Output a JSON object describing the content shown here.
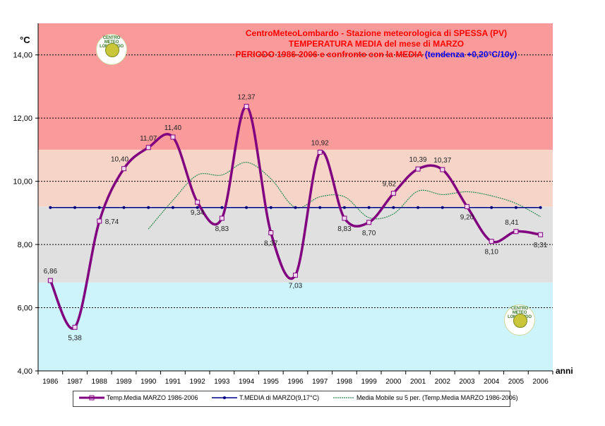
{
  "chart_data": {
    "type": "line",
    "title_lines": [
      {
        "text": "CentroMeteoLombardo - Stazione meteorologica di SPESSA (PV)",
        "color": "#ff0000"
      },
      {
        "text": "TEMPERATURA MEDIA del mese di MARZO",
        "color": "#ff0000"
      },
      {
        "text": "PERIODO 1986-2006 e confronto con la MEDIA",
        "color": "#ff0000",
        "suffix": "(tendenza +0,20°C/10y)",
        "suffix_color": "#0000ff"
      }
    ],
    "ylabel": "°C",
    "xlabel": "anni",
    "ylim": [
      4,
      15
    ],
    "yticks": [
      "4,00",
      "6,00",
      "8,00",
      "10,00",
      "12,00",
      "14,00"
    ],
    "ytick_values": [
      4,
      6,
      8,
      10,
      12,
      14
    ],
    "categories": [
      "1986",
      "1987",
      "1988",
      "1989",
      "1990",
      "1991",
      "1992",
      "1993",
      "1994",
      "1995",
      "1996",
      "1997",
      "1998",
      "1999",
      "2000",
      "2001",
      "2002",
      "2003",
      "2004",
      "2005",
      "2006"
    ],
    "bands": [
      {
        "from": 4.0,
        "to": 6.8,
        "color": "#cdf3fb"
      },
      {
        "from": 6.8,
        "to": 9.2,
        "color": "#e0e0e0"
      },
      {
        "from": 9.2,
        "to": 11.0,
        "color": "#f6d5c8"
      },
      {
        "from": 11.0,
        "to": 15.0,
        "color": "#fb9a9a"
      }
    ],
    "grid_values": [
      6,
      8,
      10,
      12,
      14
    ],
    "series": [
      {
        "name": "Temp.Media MARZO 1986-2006",
        "color": "#800080",
        "values": [
          6.86,
          5.38,
          8.74,
          10.4,
          11.07,
          11.4,
          9.34,
          8.83,
          12.37,
          8.37,
          7.03,
          10.92,
          8.83,
          8.7,
          9.62,
          10.39,
          10.37,
          9.2,
          8.1,
          8.41,
          8.31
        ]
      },
      {
        "name": "T.MEDIA di MARZO(9,17°C)",
        "color": "#000080",
        "values": [
          9.17,
          9.17,
          9.17,
          9.17,
          9.17,
          9.17,
          9.17,
          9.17,
          9.17,
          9.17,
          9.17,
          9.17,
          9.17,
          9.17,
          9.17,
          9.17,
          9.17,
          9.17,
          9.17,
          9.17,
          9.17
        ]
      },
      {
        "name": "Media Mobile su 5 per. (Temp.Media MARZO 1986-2006)",
        "color": "#2e8b57",
        "values": [
          null,
          null,
          null,
          null,
          8.49,
          9.4,
          10.2,
          10.2,
          10.6,
          10.08,
          9.17,
          9.51,
          9.51,
          8.85,
          8.97,
          9.69,
          9.58,
          9.67,
          9.54,
          9.3,
          8.88
        ]
      }
    ],
    "data_labels": [
      {
        "index": 0,
        "text": "6,86",
        "pos": "above"
      },
      {
        "index": 1,
        "text": "5,38",
        "pos": "below"
      },
      {
        "index": 2,
        "text": "8,74",
        "pos": "right"
      },
      {
        "index": 3,
        "text": "10,40",
        "pos": "above-left"
      },
      {
        "index": 4,
        "text": "11,07",
        "pos": "above"
      },
      {
        "index": 5,
        "text": "11,40",
        "pos": "above"
      },
      {
        "index": 6,
        "text": "9,34",
        "pos": "below"
      },
      {
        "index": 7,
        "text": "8,83",
        "pos": "below"
      },
      {
        "index": 8,
        "text": "12,37",
        "pos": "above"
      },
      {
        "index": 9,
        "text": "8,37",
        "pos": "below"
      },
      {
        "index": 10,
        "text": "7,03",
        "pos": "below"
      },
      {
        "index": 11,
        "text": "10,92",
        "pos": "above"
      },
      {
        "index": 12,
        "text": "8,83",
        "pos": "below"
      },
      {
        "index": 13,
        "text": "8,70",
        "pos": "below"
      },
      {
        "index": 14,
        "text": "9,62",
        "pos": "above-left"
      },
      {
        "index": 15,
        "text": "10,39",
        "pos": "above"
      },
      {
        "index": 16,
        "text": "10,37",
        "pos": "above"
      },
      {
        "index": 17,
        "text": "9,20",
        "pos": "below"
      },
      {
        "index": 18,
        "text": "8,10",
        "pos": "below"
      },
      {
        "index": 19,
        "text": "8,41",
        "pos": "above-left"
      },
      {
        "index": 20,
        "text": "8,31",
        "pos": "below"
      }
    ],
    "legend_position": "bottom"
  },
  "logos": {
    "text": "CENTRO METEO LOMBARDO",
    "short": "CML"
  }
}
